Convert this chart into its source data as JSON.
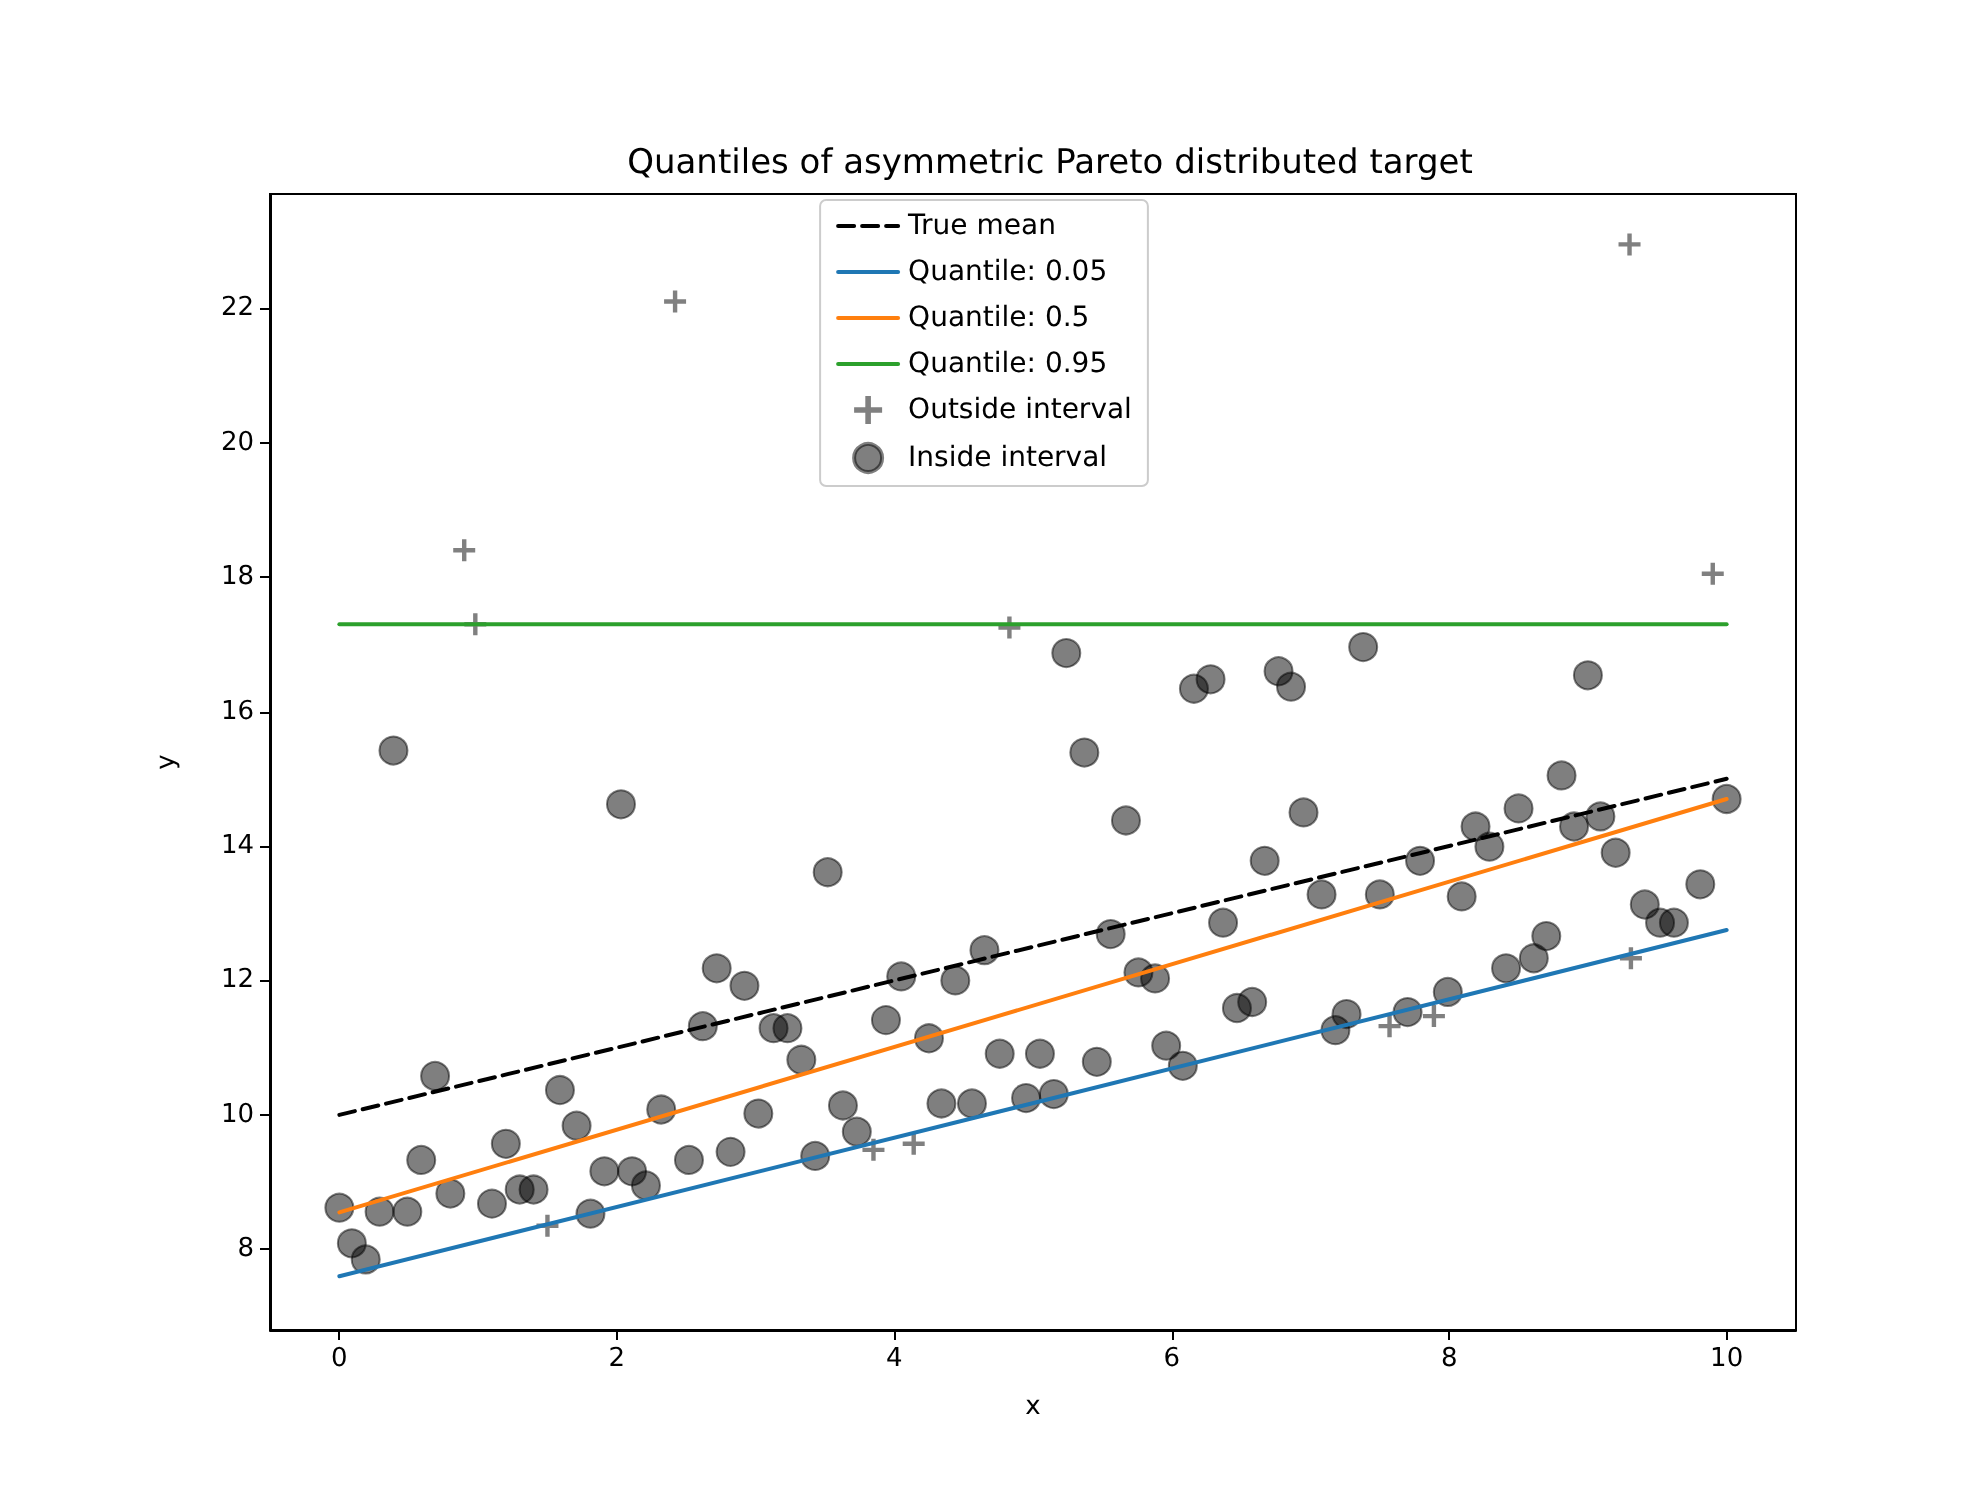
{
  "chart_data": {
    "type": "scatter",
    "title": "Quantiles of asymmetric Pareto distributed target",
    "xlabel": "x",
    "ylabel": "y",
    "xlim": [
      -0.5,
      10.5
    ],
    "xticks": [
      0,
      2,
      4,
      6,
      8,
      10
    ],
    "ylim": [
      6.8,
      23.7
    ],
    "yticks": [
      8,
      10,
      12,
      14,
      16,
      18,
      20,
      22
    ],
    "grid": false,
    "legend": "top",
    "series": [
      {
        "name": "True mean",
        "type": "line",
        "color": "#000000",
        "line_style": "dashed",
        "marker": "none",
        "x": [
          0,
          10
        ],
        "values": [
          10,
          15
        ]
      },
      {
        "name": "Quantile: 0.05",
        "type": "line",
        "color": "#1f77b4",
        "line_style": "solid",
        "marker": "none",
        "x": [
          0,
          10
        ],
        "values": [
          7.6,
          12.75
        ]
      },
      {
        "name": "Quantile: 0.5",
        "type": "line",
        "color": "#ff7f0e",
        "line_style": "solid",
        "marker": "none",
        "x": [
          0,
          10
        ],
        "values": [
          8.55,
          14.7
        ]
      },
      {
        "name": "Quantile: 0.95",
        "type": "line",
        "color": "#2ca02c",
        "line_style": "solid",
        "marker": "none",
        "x": [
          0,
          10
        ],
        "values": [
          17.3,
          17.3
        ]
      },
      {
        "name": "Outside interval",
        "type": "scatter",
        "color": "#808080",
        "marker": "cross",
        "x": [
          0.9,
          0.98,
          2.42,
          4.83,
          9.3,
          9.9,
          1.5,
          3.85,
          4.14,
          7.57,
          7.89,
          9.31
        ],
        "values": [
          18.4,
          17.3,
          22.1,
          17.25,
          22.95,
          18.05,
          8.35,
          9.48,
          9.57,
          11.32,
          11.47,
          12.33
        ]
      },
      {
        "name": "Inside interval",
        "type": "scatter",
        "color": "#000000",
        "marker": "circle",
        "x": [
          0,
          0.09,
          0.19,
          0.29,
          0.39,
          0.49,
          0.59,
          0.69,
          0.8,
          1.1,
          1.2,
          1.3,
          1.4,
          1.59,
          1.71,
          1.81,
          1.91,
          2.03,
          2.11,
          2.21,
          2.32,
          2.52,
          2.62,
          2.72,
          2.82,
          2.92,
          3.02,
          3.13,
          3.23,
          3.33,
          3.43,
          3.52,
          3.63,
          3.73,
          3.94,
          4.05,
          4.25,
          4.34,
          4.44,
          4.56,
          4.65,
          4.76,
          4.95,
          5.05,
          5.15,
          5.24,
          5.37,
          5.46,
          5.56,
          5.67,
          5.76,
          5.88,
          5.96,
          6.08,
          6.16,
          6.28,
          6.37,
          6.47,
          6.58,
          6.67,
          6.77,
          6.86,
          6.95,
          7.08,
          7.18,
          7.26,
          7.38,
          7.5,
          7.7,
          7.79,
          7.99,
          8.09,
          8.19,
          8.29,
          8.41,
          8.5,
          8.61,
          8.7,
          8.81,
          8.9,
          9.0,
          9.09,
          9.2,
          9.41,
          9.52,
          9.62,
          9.81,
          10.0
        ],
        "values": [
          8.62,
          8.09,
          7.85,
          8.56,
          15.42,
          8.56,
          9.33,
          10.58,
          8.83,
          8.68,
          9.57,
          8.89,
          8.89,
          10.37,
          9.84,
          8.53,
          9.16,
          14.62,
          9.16,
          8.95,
          10.08,
          9.33,
          11.32,
          12.18,
          9.45,
          11.92,
          10.02,
          11.29,
          11.29,
          10.82,
          9.39,
          13.61,
          10.14,
          9.75,
          11.41,
          12.06,
          11.14,
          10.17,
          12.0,
          10.17,
          12.45,
          10.91,
          10.25,
          10.91,
          10.31,
          16.87,
          15.39,
          10.79,
          12.69,
          14.38,
          12.12,
          12.03,
          11.03,
          10.73,
          16.34,
          16.48,
          12.86,
          11.59,
          11.68,
          13.78,
          16.6,
          16.37,
          14.5,
          13.28,
          11.26,
          11.5,
          16.96,
          13.28,
          11.53,
          13.78,
          11.83,
          13.25,
          14.29,
          13.99,
          12.18,
          14.56,
          12.33,
          12.66,
          15.05,
          14.29,
          16.54,
          14.44,
          13.9,
          13.13,
          12.86,
          12.86,
          13.43,
          14.7
        ]
      }
    ]
  }
}
